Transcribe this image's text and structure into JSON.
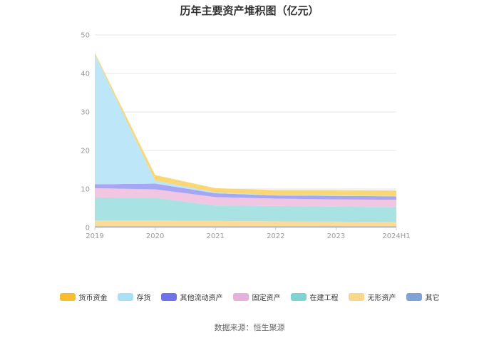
{
  "chart_data": {
    "type": "area",
    "stacked": true,
    "title": "历年主要资产堆积图（亿元）",
    "categories": [
      "2019",
      "2020",
      "2021",
      "2022",
      "2023",
      "2024H1"
    ],
    "ylim": [
      0,
      50
    ],
    "yticks": [
      "0",
      "10",
      "20",
      "30",
      "40",
      "50"
    ],
    "grid": true,
    "legend_position": "bottom",
    "series": [
      {
        "name": "其它",
        "color": "#8DA9DB",
        "values": [
          0.3,
          0.3,
          0.3,
          0.3,
          0.3,
          0.3
        ]
      },
      {
        "name": "无形资产",
        "color": "#FCDB98",
        "values": [
          1.5,
          1.5,
          1.4,
          1.3,
          1.2,
          1.1
        ]
      },
      {
        "name": "在建工程",
        "color": "#A9E2E2",
        "values": [
          6.0,
          5.9,
          4.0,
          4.0,
          3.9,
          3.9
        ]
      },
      {
        "name": "固定资产",
        "color": "#F0C6E2",
        "values": [
          2.4,
          2.2,
          2.2,
          1.9,
          1.9,
          1.9
        ]
      },
      {
        "name": "其他流动资产",
        "color": "#A6A7F4",
        "values": [
          1.0,
          1.5,
          1.0,
          0.8,
          0.9,
          0.9
        ]
      },
      {
        "name": "存货",
        "color": "#BDE6F8",
        "values": [
          33.8,
          0.8,
          0.2,
          0.1,
          0.1,
          0.1
        ]
      },
      {
        "name": "货币资金",
        "color": "#FAD675",
        "values": [
          0.4,
          1.4,
          1.1,
          1.3,
          1.4,
          1.4
        ]
      }
    ],
    "legend_order": [
      "货币资金",
      "存货",
      "其他流动资产",
      "固定资产",
      "在建工程",
      "无形资产",
      "其它"
    ],
    "legend_colors": {
      "货币资金": "#F7BE32",
      "存货": "#A8E0F7",
      "其他流动资产": "#6F72E8",
      "固定资产": "#E6B1DA",
      "在建工程": "#7FD3D3",
      "无形资产": "#FAD68A",
      "其它": "#7FA3D6"
    }
  },
  "source_text": "数据来源：恒生聚源"
}
